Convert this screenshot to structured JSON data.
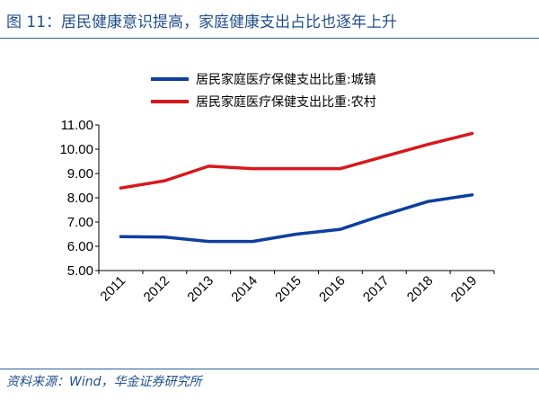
{
  "header": {
    "title": "图 11：居民健康意识提高，家庭健康支出占比也逐年上升"
  },
  "footer": {
    "source": "资料来源：Wind，华金证券研究所"
  },
  "chart_data": {
    "type": "line",
    "x": [
      "2011",
      "2012",
      "2013",
      "2014",
      "2015",
      "2016",
      "2017",
      "2018",
      "2019"
    ],
    "series": [
      {
        "name": "居民家庭医疗保健支出比重:城镇",
        "color": "#0e3f9e",
        "values": [
          6.4,
          6.38,
          6.2,
          6.2,
          6.5,
          6.7,
          7.3,
          7.85,
          8.12
        ]
      },
      {
        "name": "居民家庭医疗保健支出比重:农村",
        "color": "#d7191c",
        "values": [
          8.4,
          8.7,
          9.3,
          9.2,
          9.2,
          9.2,
          9.7,
          10.2,
          10.65
        ]
      }
    ],
    "ylim": [
      5.0,
      11.0
    ],
    "yticks": [
      "5.00",
      "6.00",
      "7.00",
      "8.00",
      "9.00",
      "10.00",
      "11.00"
    ],
    "grid": false,
    "legend_position": "top"
  }
}
